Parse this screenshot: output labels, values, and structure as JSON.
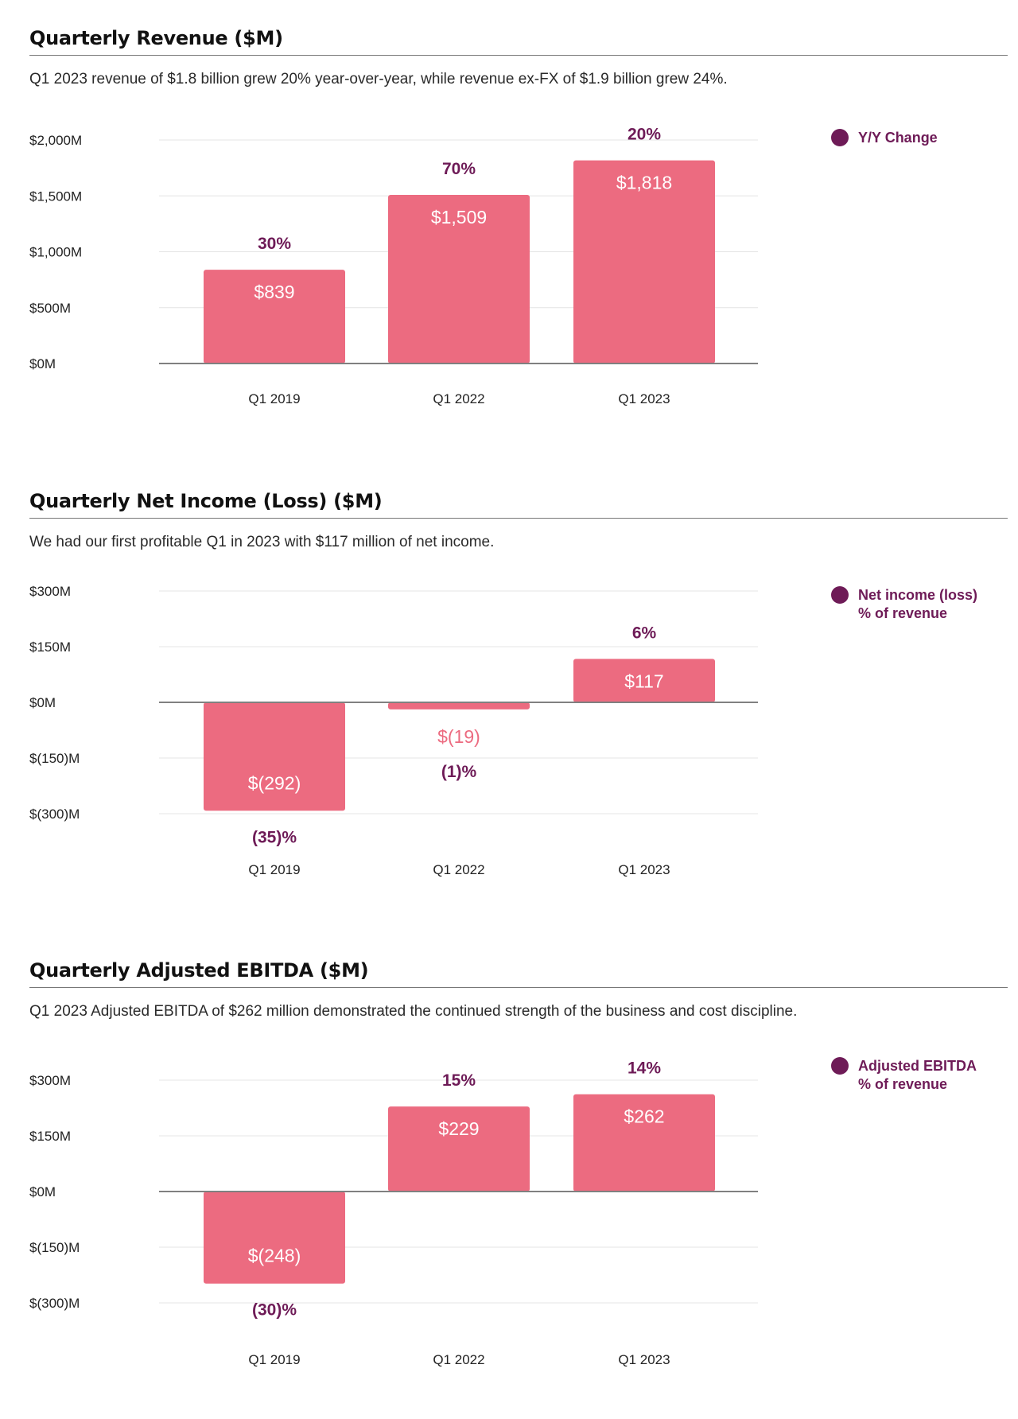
{
  "colors": {
    "bar": "#EC6B80",
    "accent": "#6E1B57",
    "grid": "#E4E4E4",
    "axis": "#808080"
  },
  "chart_data": [
    {
      "type": "bar",
      "title": "Quarterly Revenue ($M)",
      "subtitle": "Q1 2023 revenue of $1.8 billion grew 20% year-over-year, while revenue ex-FX of $1.9 billion grew 24%.",
      "categories": [
        "Q1 2019",
        "Q1 2022",
        "Q1 2023"
      ],
      "values": [
        839,
        1509,
        1818
      ],
      "value_labels": [
        "$839",
        "$1,509",
        "$1,818"
      ],
      "percent_labels": [
        "30%",
        "70%",
        "20%"
      ],
      "legend": [
        "Y/Y Change"
      ],
      "legend_placement": "top-right",
      "ylim": [
        0,
        2000
      ],
      "yticks": [
        2000,
        1500,
        1000,
        500,
        0
      ],
      "ytick_labels": [
        "$2,000M",
        "$1,500M",
        "$1,000M",
        "$500M",
        "$0M"
      ],
      "grid": true
    },
    {
      "type": "bar",
      "title": "Quarterly Net Income (Loss) ($M)",
      "subtitle": "We had our first profitable Q1 in 2023 with $117 million of net income.",
      "categories": [
        "Q1 2019",
        "Q1 2022",
        "Q1 2023"
      ],
      "values": [
        -292,
        -19,
        117
      ],
      "value_labels": [
        "$(292)",
        "$(19)",
        "$117"
      ],
      "percent_labels": [
        "(35)%",
        "(1)%",
        "6%"
      ],
      "legend": [
        "Net income (loss)",
        "% of revenue"
      ],
      "legend_placement": "top-right",
      "ylim": [
        -300,
        300
      ],
      "yticks": [
        300,
        150,
        0,
        -150,
        -300
      ],
      "ytick_labels": [
        "$300M",
        "$150M",
        "$0M",
        "$(150)M",
        "$(300)M"
      ],
      "grid": true
    },
    {
      "type": "bar",
      "title": "Quarterly Adjusted EBITDA ($M)",
      "subtitle": "Q1 2023 Adjusted EBITDA of $262 million demonstrated the continued strength of the business and cost discipline.",
      "categories": [
        "Q1 2019",
        "Q1 2022",
        "Q1 2023"
      ],
      "values": [
        -248,
        229,
        262
      ],
      "value_labels": [
        "$(248)",
        "$229",
        "$262"
      ],
      "percent_labels": [
        "(30)%",
        "15%",
        "14%"
      ],
      "legend": [
        "Adjusted EBITDA",
        "% of revenue"
      ],
      "legend_placement": "top-right",
      "ylim": [
        -300,
        300
      ],
      "yticks": [
        300,
        150,
        0,
        -150,
        -300
      ],
      "ytick_labels": [
        "$300M",
        "$150M",
        "$0M",
        "$(150)M",
        "$(300)M"
      ],
      "grid": true
    }
  ]
}
